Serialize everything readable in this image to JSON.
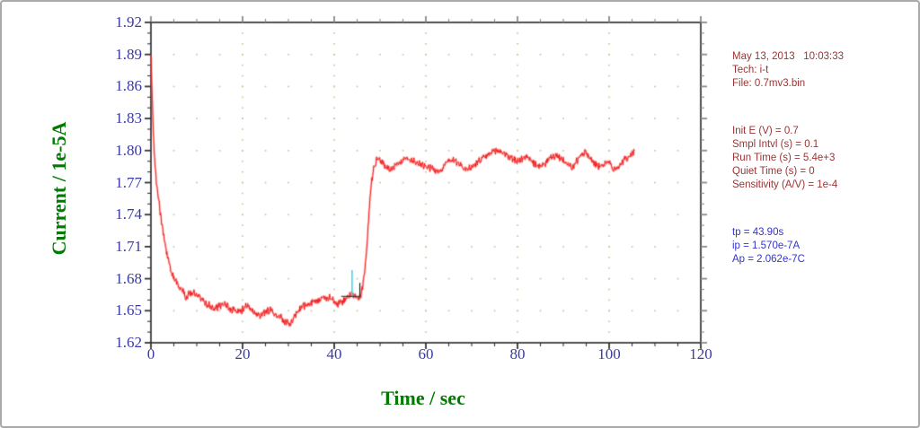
{
  "window": {
    "background": "#ffffff",
    "border_color": "#a9a9a9"
  },
  "chart_data": {
    "type": "line",
    "xlabel": "Time / sec",
    "ylabel": "Current / 1e-5A",
    "xlim": [
      0,
      120
    ],
    "ylim": [
      1.62,
      1.92
    ],
    "xtick_values": [
      0,
      20,
      40,
      60,
      80,
      100,
      120
    ],
    "xticks": [
      "0",
      "20",
      "40",
      "60",
      "80",
      "100",
      "120"
    ],
    "x_minor_step": 5,
    "ytick_values": [
      1.92,
      1.89,
      1.86,
      1.83,
      1.8,
      1.77,
      1.74,
      1.71,
      1.68,
      1.65,
      1.62
    ],
    "yticks": [
      "1.92",
      "1.89",
      "1.86",
      "1.83",
      "1.80",
      "1.77",
      "1.74",
      "1.71",
      "1.68",
      "1.65",
      "1.62"
    ],
    "y_minor_step": 0.01,
    "grid": "dotted",
    "grid_dot_color": "#cbc79d",
    "axis_color": "#333333",
    "secondary_tick_color": "#8a8a8a",
    "tick_label_color": "#3a3aa5",
    "axis_title_color": "#007a00",
    "series": [
      {
        "name": "i-t curve",
        "color": "#ee1c1c",
        "halo_color": "rgba(255,100,100,0.45)",
        "sample_interval_s": 0.1,
        "t_end": 105.5,
        "noise_amp": 0.004,
        "control_points": [
          [
            0,
            1.889
          ],
          [
            0.2,
            1.862
          ],
          [
            0.5,
            1.818
          ],
          [
            0.8,
            1.793
          ],
          [
            1.2,
            1.77
          ],
          [
            1.7,
            1.752
          ],
          [
            2.2,
            1.737
          ],
          [
            2.8,
            1.72
          ],
          [
            3.5,
            1.703
          ],
          [
            4.2,
            1.691
          ],
          [
            5,
            1.681
          ],
          [
            6,
            1.673
          ],
          [
            7,
            1.669
          ],
          [
            7.6,
            1.663
          ],
          [
            8.3,
            1.665
          ],
          [
            9.2,
            1.667
          ],
          [
            10,
            1.665
          ],
          [
            11,
            1.662
          ],
          [
            12,
            1.657
          ],
          [
            13,
            1.654
          ],
          [
            14,
            1.652
          ],
          [
            15,
            1.655
          ],
          [
            16,
            1.657
          ],
          [
            17,
            1.653
          ],
          [
            18,
            1.65
          ],
          [
            19,
            1.649
          ],
          [
            20,
            1.651
          ],
          [
            20.8,
            1.655
          ],
          [
            21.5,
            1.652
          ],
          [
            22.5,
            1.649
          ],
          [
            24,
            1.646
          ],
          [
            25,
            1.649
          ],
          [
            26,
            1.651
          ],
          [
            27,
            1.648
          ],
          [
            28,
            1.644
          ],
          [
            29,
            1.641
          ],
          [
            30,
            1.638
          ],
          [
            30.6,
            1.639
          ],
          [
            31.5,
            1.646
          ],
          [
            32.5,
            1.652
          ],
          [
            33.5,
            1.655
          ],
          [
            34.5,
            1.656
          ],
          [
            35.5,
            1.658
          ],
          [
            36.5,
            1.659
          ],
          [
            37.5,
            1.661
          ],
          [
            38.5,
            1.663
          ],
          [
            39.5,
            1.661
          ],
          [
            40.5,
            1.656
          ],
          [
            41.5,
            1.657
          ],
          [
            42.5,
            1.661
          ],
          [
            43.5,
            1.665
          ],
          [
            43.9,
            1.667
          ],
          [
            44.5,
            1.664
          ],
          [
            45.2,
            1.662
          ],
          [
            45.8,
            1.665
          ],
          [
            46.2,
            1.672
          ],
          [
            46.6,
            1.684
          ],
          [
            47,
            1.703
          ],
          [
            47.4,
            1.728
          ],
          [
            47.8,
            1.755
          ],
          [
            48.2,
            1.772
          ],
          [
            48.6,
            1.783
          ],
          [
            49,
            1.789
          ],
          [
            49.5,
            1.793
          ],
          [
            50,
            1.791
          ],
          [
            51,
            1.786
          ],
          [
            52,
            1.782
          ],
          [
            53,
            1.785
          ],
          [
            54,
            1.789
          ],
          [
            55,
            1.791
          ],
          [
            56,
            1.792
          ],
          [
            57,
            1.791
          ],
          [
            58,
            1.789
          ],
          [
            60,
            1.786
          ],
          [
            61,
            1.784
          ],
          [
            62,
            1.781
          ],
          [
            63,
            1.781
          ],
          [
            64,
            1.786
          ],
          [
            65,
            1.79
          ],
          [
            66,
            1.792
          ],
          [
            67,
            1.789
          ],
          [
            68,
            1.785
          ],
          [
            69,
            1.782
          ],
          [
            70,
            1.784
          ],
          [
            71,
            1.788
          ],
          [
            72,
            1.791
          ],
          [
            73,
            1.794
          ],
          [
            74,
            1.797
          ],
          [
            75,
            1.799
          ],
          [
            76,
            1.8
          ],
          [
            77,
            1.798
          ],
          [
            78,
            1.795
          ],
          [
            79,
            1.792
          ],
          [
            80,
            1.79
          ],
          [
            81,
            1.792
          ],
          [
            82,
            1.794
          ],
          [
            83,
            1.791
          ],
          [
            84,
            1.787
          ],
          [
            85,
            1.784
          ],
          [
            86,
            1.788
          ],
          [
            87,
            1.792
          ],
          [
            88,
            1.795
          ],
          [
            89,
            1.794
          ],
          [
            90,
            1.79
          ],
          [
            91,
            1.786
          ],
          [
            92,
            1.784
          ],
          [
            93,
            1.79
          ],
          [
            94,
            1.796
          ],
          [
            95,
            1.799
          ],
          [
            96,
            1.793
          ],
          [
            97,
            1.787
          ],
          [
            98,
            1.785
          ],
          [
            99,
            1.787
          ],
          [
            100,
            1.789
          ],
          [
            101,
            1.783
          ],
          [
            102,
            1.785
          ],
          [
            103,
            1.79
          ],
          [
            104,
            1.794
          ],
          [
            105,
            1.797
          ],
          [
            105.5,
            1.798
          ]
        ]
      }
    ],
    "annotations": {
      "baseline_marker": {
        "color": "#222222",
        "x_from": 41.5,
        "x_to": 45.6,
        "y": 1.6635,
        "tick_top": 1.676
      },
      "tp_marker": {
        "color": "#49d4e8",
        "x": 43.9,
        "y_from": 1.664,
        "y_to": 1.688
      }
    }
  },
  "info_panel": {
    "header_color": "#9a3434",
    "result_color": "#3434c8",
    "header_lines": [
      "May 13, 2013   10:03:33",
      "Tech: i-t",
      "File: 0.7mv3.bin"
    ],
    "param_lines": [
      "Init E (V) = 0.7",
      "Smpl Intvl (s) = 0.1",
      "Run Time (s) = 5.4e+3",
      "Quiet Time (s) = 0",
      "Sensitivity (A/V) = 1e-4"
    ],
    "result_lines": [
      "tp = 43.90s",
      "ip = 1.570e-7A",
      "Ap = 2.062e-7C"
    ]
  }
}
